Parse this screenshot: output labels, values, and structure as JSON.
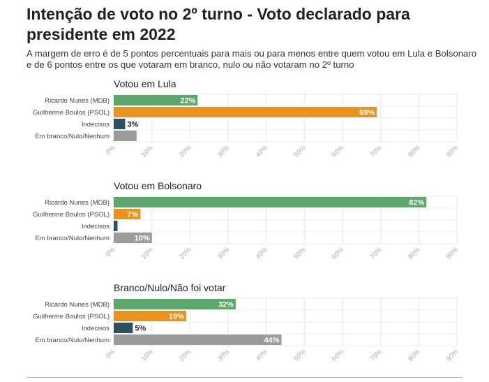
{
  "header": {
    "title": "Intenção de voto no 2º turno - Voto declarado para presidente em 2022",
    "subtitle": "A margem de erro é de 5 pontos percentuais para mais ou para menos entre quem votou em Lula e Bolsonaro e de 6 pontos entre os que votaram em branco, nulo ou não votaram no 2º turno"
  },
  "chart_data": [
    {
      "type": "bar",
      "orientation": "horizontal",
      "title": "Votou em Lula",
      "categories": [
        "Ricardo Nunes (MDB)",
        "Guilherme Boulos (PSOL)",
        "Indecisos",
        "Em branco/Nulo/Nenhum"
      ],
      "values": [
        22,
        69,
        3,
        6
      ],
      "labels": [
        "22%",
        "69%",
        "3%",
        ""
      ],
      "colors": [
        "#5fa56e",
        "#e6941e",
        "#2f4f61",
        "#9b9b9b"
      ],
      "xlim": [
        0,
        90
      ],
      "xticks": [
        "0%",
        "10%",
        "20%",
        "30%",
        "40%",
        "50%",
        "60%",
        "70%",
        "80%",
        "90%"
      ],
      "grid": true
    },
    {
      "type": "bar",
      "orientation": "horizontal",
      "title": "Votou em Bolsonaro",
      "categories": [
        "Ricardo Nunes (MDB)",
        "Guilherme Boulos (PSOL)",
        "Indecisos",
        "Em branco/Nulo/Nenhum"
      ],
      "values": [
        82,
        7,
        1,
        10
      ],
      "labels": [
        "82%",
        "7%",
        "",
        "10%"
      ],
      "colors": [
        "#5fa56e",
        "#e6941e",
        "#2f4f61",
        "#9b9b9b"
      ],
      "xlim": [
        0,
        90
      ],
      "xticks": [
        "0%",
        "10%",
        "20%",
        "30%",
        "40%",
        "50%",
        "60%",
        "70%",
        "80%",
        "90%"
      ],
      "grid": true
    },
    {
      "type": "bar",
      "orientation": "horizontal",
      "title": "Branco/Nulo/Não foi votar",
      "categories": [
        "Ricardo Nunes (MDB)",
        "Guilherme Boulos (PSOL)",
        "Indecisos",
        "Em branco/Nulo/Nenhum"
      ],
      "values": [
        32,
        19,
        5,
        44
      ],
      "labels": [
        "32%",
        "19%",
        "5%",
        "44%"
      ],
      "colors": [
        "#5fa56e",
        "#e6941e",
        "#2f4f61",
        "#9b9b9b"
      ],
      "xlim": [
        0,
        90
      ],
      "xticks": [
        "0%",
        "10%",
        "20%",
        "30%",
        "40%",
        "50%",
        "60%",
        "70%",
        "80%",
        "90%"
      ],
      "grid": true
    }
  ]
}
